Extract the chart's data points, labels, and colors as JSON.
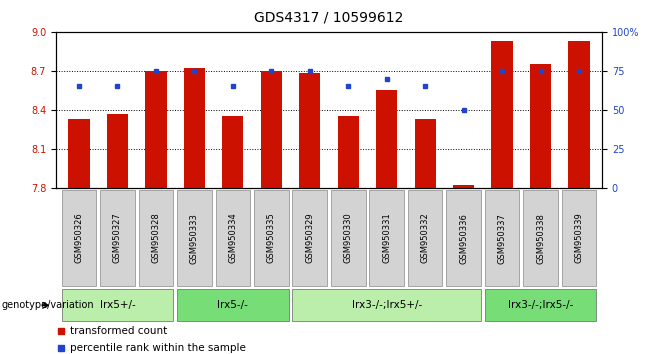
{
  "title": "GDS4317 / 10599612",
  "samples": [
    "GSM950326",
    "GSM950327",
    "GSM950328",
    "GSM950333",
    "GSM950334",
    "GSM950335",
    "GSM950329",
    "GSM950330",
    "GSM950331",
    "GSM950332",
    "GSM950336",
    "GSM950337",
    "GSM950338",
    "GSM950339"
  ],
  "red_values": [
    8.33,
    8.37,
    8.7,
    8.72,
    8.35,
    8.7,
    8.68,
    8.35,
    8.55,
    8.33,
    7.82,
    8.93,
    8.75,
    8.93
  ],
  "blue_percentiles": [
    65,
    65,
    75,
    75,
    65,
    75,
    75,
    65,
    70,
    65,
    50,
    75,
    75,
    75
  ],
  "ylim_left": [
    7.8,
    9.0
  ],
  "ylim_right": [
    0,
    100
  ],
  "yticks_left": [
    7.8,
    8.1,
    8.4,
    8.7,
    9.0
  ],
  "yticks_right": [
    0,
    25,
    50,
    75,
    100
  ],
  "hlines": [
    8.1,
    8.4,
    8.7
  ],
  "groups": [
    {
      "label": "lrx5+/-",
      "start": 0,
      "end": 2,
      "color": "#bbeeaa"
    },
    {
      "label": "lrx5-/-",
      "start": 3,
      "end": 5,
      "color": "#77dd77"
    },
    {
      "label": "lrx3-/-;lrx5+/-",
      "start": 6,
      "end": 10,
      "color": "#bbeeaa"
    },
    {
      "label": "lrx3-/-;lrx5-/-",
      "start": 11,
      "end": 13,
      "color": "#77dd77"
    }
  ],
  "bar_color": "#cc1100",
  "dot_color": "#2244cc",
  "bar_width": 0.55,
  "legend_items": [
    "transformed count",
    "percentile rank within the sample"
  ],
  "genotype_label": "genotype/variation",
  "title_fontsize": 10,
  "tick_fontsize": 7,
  "sample_fontsize": 6,
  "group_label_fontsize": 7.5
}
